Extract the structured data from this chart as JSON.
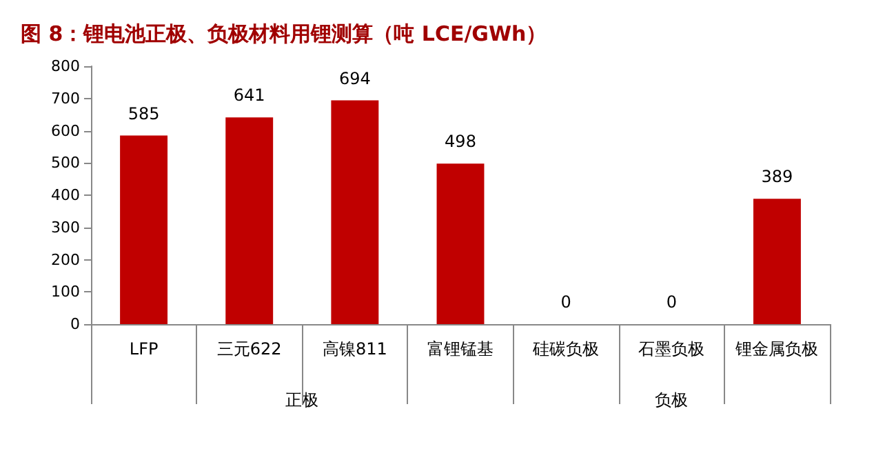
{
  "chart_data": {
    "type": "bar",
    "title": "图 8：锂电池正极、负极材料用锂测算（吨 LCE/GWh）",
    "categories": [
      "LFP",
      "三元622",
      "高镍811",
      "富锂锰基",
      "硅碳负极",
      "石墨负极",
      "锂金属负极"
    ],
    "values": [
      585,
      641,
      694,
      498,
      0,
      0,
      389
    ],
    "color": "#c00000",
    "ylim": [
      0,
      800
    ],
    "yticks": [
      0,
      100,
      200,
      300,
      400,
      500,
      600,
      700,
      800
    ],
    "grid": false,
    "data_labels": true,
    "annotations": [
      "正极",
      "负极"
    ]
  }
}
